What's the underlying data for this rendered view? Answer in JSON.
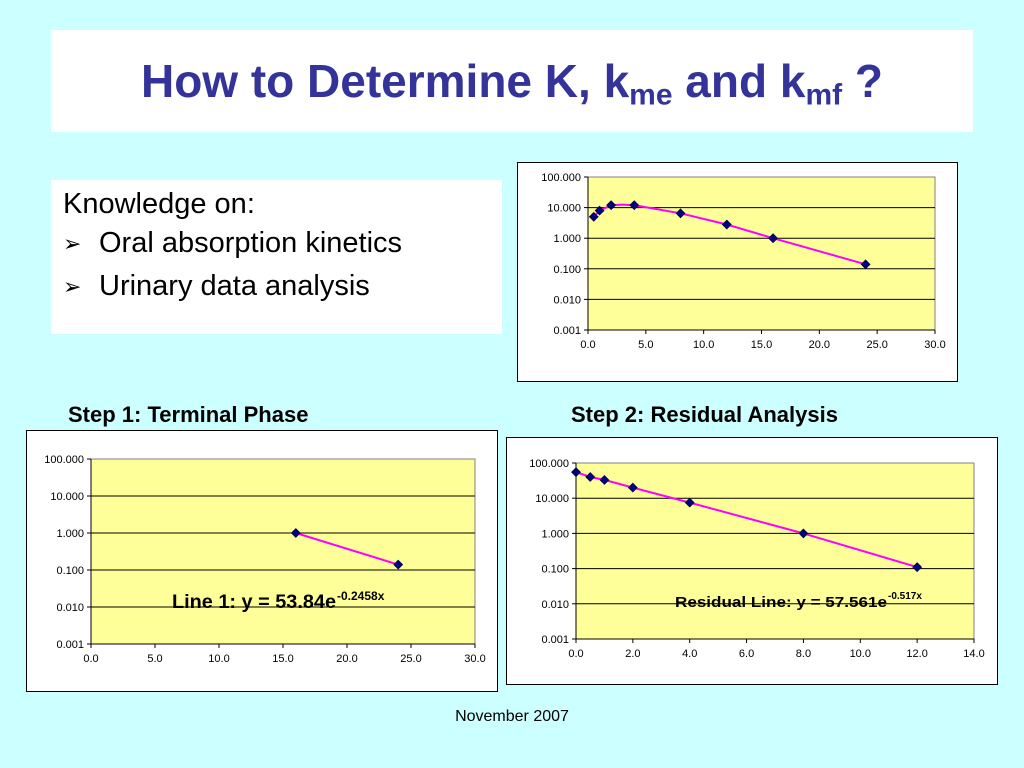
{
  "slide": {
    "title": {
      "prefix": "How to Determine K, k",
      "sub1": "me",
      "middle": " and k",
      "sub2": "mf",
      "suffix": " ?"
    },
    "knowledge": {
      "heading": "Knowledge on:",
      "items": [
        "Oral absorption kinetics",
        "Urinary data analysis"
      ],
      "bullet_icon": "arrow-bullet-icon"
    },
    "step1_label": "Step 1: Terminal Phase",
    "step2_label": "Step 2: Residual Analysis",
    "footer": "November 2007",
    "colors": {
      "background": "#ccffff",
      "title": "#333399",
      "plot_area": "#ffff99",
      "line": "#ff00ff",
      "marker": "#000080"
    }
  },
  "chart_data": [
    {
      "type": "line",
      "y_scale": "log",
      "xlim": [
        0,
        30
      ],
      "ylim": [
        0.001,
        100
      ],
      "x_ticks": [
        "0.0",
        "5.0",
        "10.0",
        "15.0",
        "20.0",
        "25.0",
        "30.0"
      ],
      "y_ticks": [
        "0.001",
        "0.010",
        "0.100",
        "1.000",
        "10.000",
        "100.000"
      ],
      "grid": "horizontal",
      "series": [
        {
          "x": [
            0.5,
            1,
            2,
            4,
            8,
            12,
            16,
            24
          ],
          "y": [
            5,
            8,
            12,
            12,
            6.5,
            2.8,
            1.0,
            0.14
          ],
          "curve_x": [
            0.5,
            1,
            2,
            3,
            4,
            8,
            12,
            16,
            24
          ],
          "curve_y": [
            5,
            8,
            12,
            12.5,
            12,
            6.5,
            2.8,
            1.0,
            0.14
          ]
        }
      ]
    },
    {
      "type": "line",
      "y_scale": "log",
      "xlim": [
        0,
        30
      ],
      "ylim": [
        0.001,
        100
      ],
      "x_ticks": [
        "0.0",
        "5.0",
        "10.0",
        "15.0",
        "20.0",
        "25.0",
        "30.0"
      ],
      "y_ticks": [
        "0.001",
        "0.010",
        "0.100",
        "1.000",
        "10.000",
        "100.000"
      ],
      "grid": "horizontal",
      "annotation": {
        "text": "Line 1: y = 53.84e",
        "exponent": "-0.2458x"
      },
      "series": [
        {
          "x": [
            16,
            24
          ],
          "y": [
            1.0,
            0.14
          ]
        }
      ]
    },
    {
      "type": "line",
      "y_scale": "log",
      "xlim": [
        0,
        14
      ],
      "ylim": [
        0.001,
        100
      ],
      "x_ticks": [
        "0.0",
        "2.0",
        "4.0",
        "6.0",
        "8.0",
        "10.0",
        "12.0",
        "14.0"
      ],
      "y_ticks": [
        "0.001",
        "0.010",
        "0.100",
        "1.000",
        "10.000",
        "100.000"
      ],
      "grid": "horizontal",
      "annotation": {
        "text": "Residual Line: y = 57.561e",
        "exponent": "-0.517x"
      },
      "series": [
        {
          "x": [
            0,
            0.5,
            1,
            2,
            4,
            8,
            12
          ],
          "y": [
            55,
            40,
            33,
            20,
            7.5,
            1.0,
            0.11
          ]
        }
      ]
    }
  ]
}
